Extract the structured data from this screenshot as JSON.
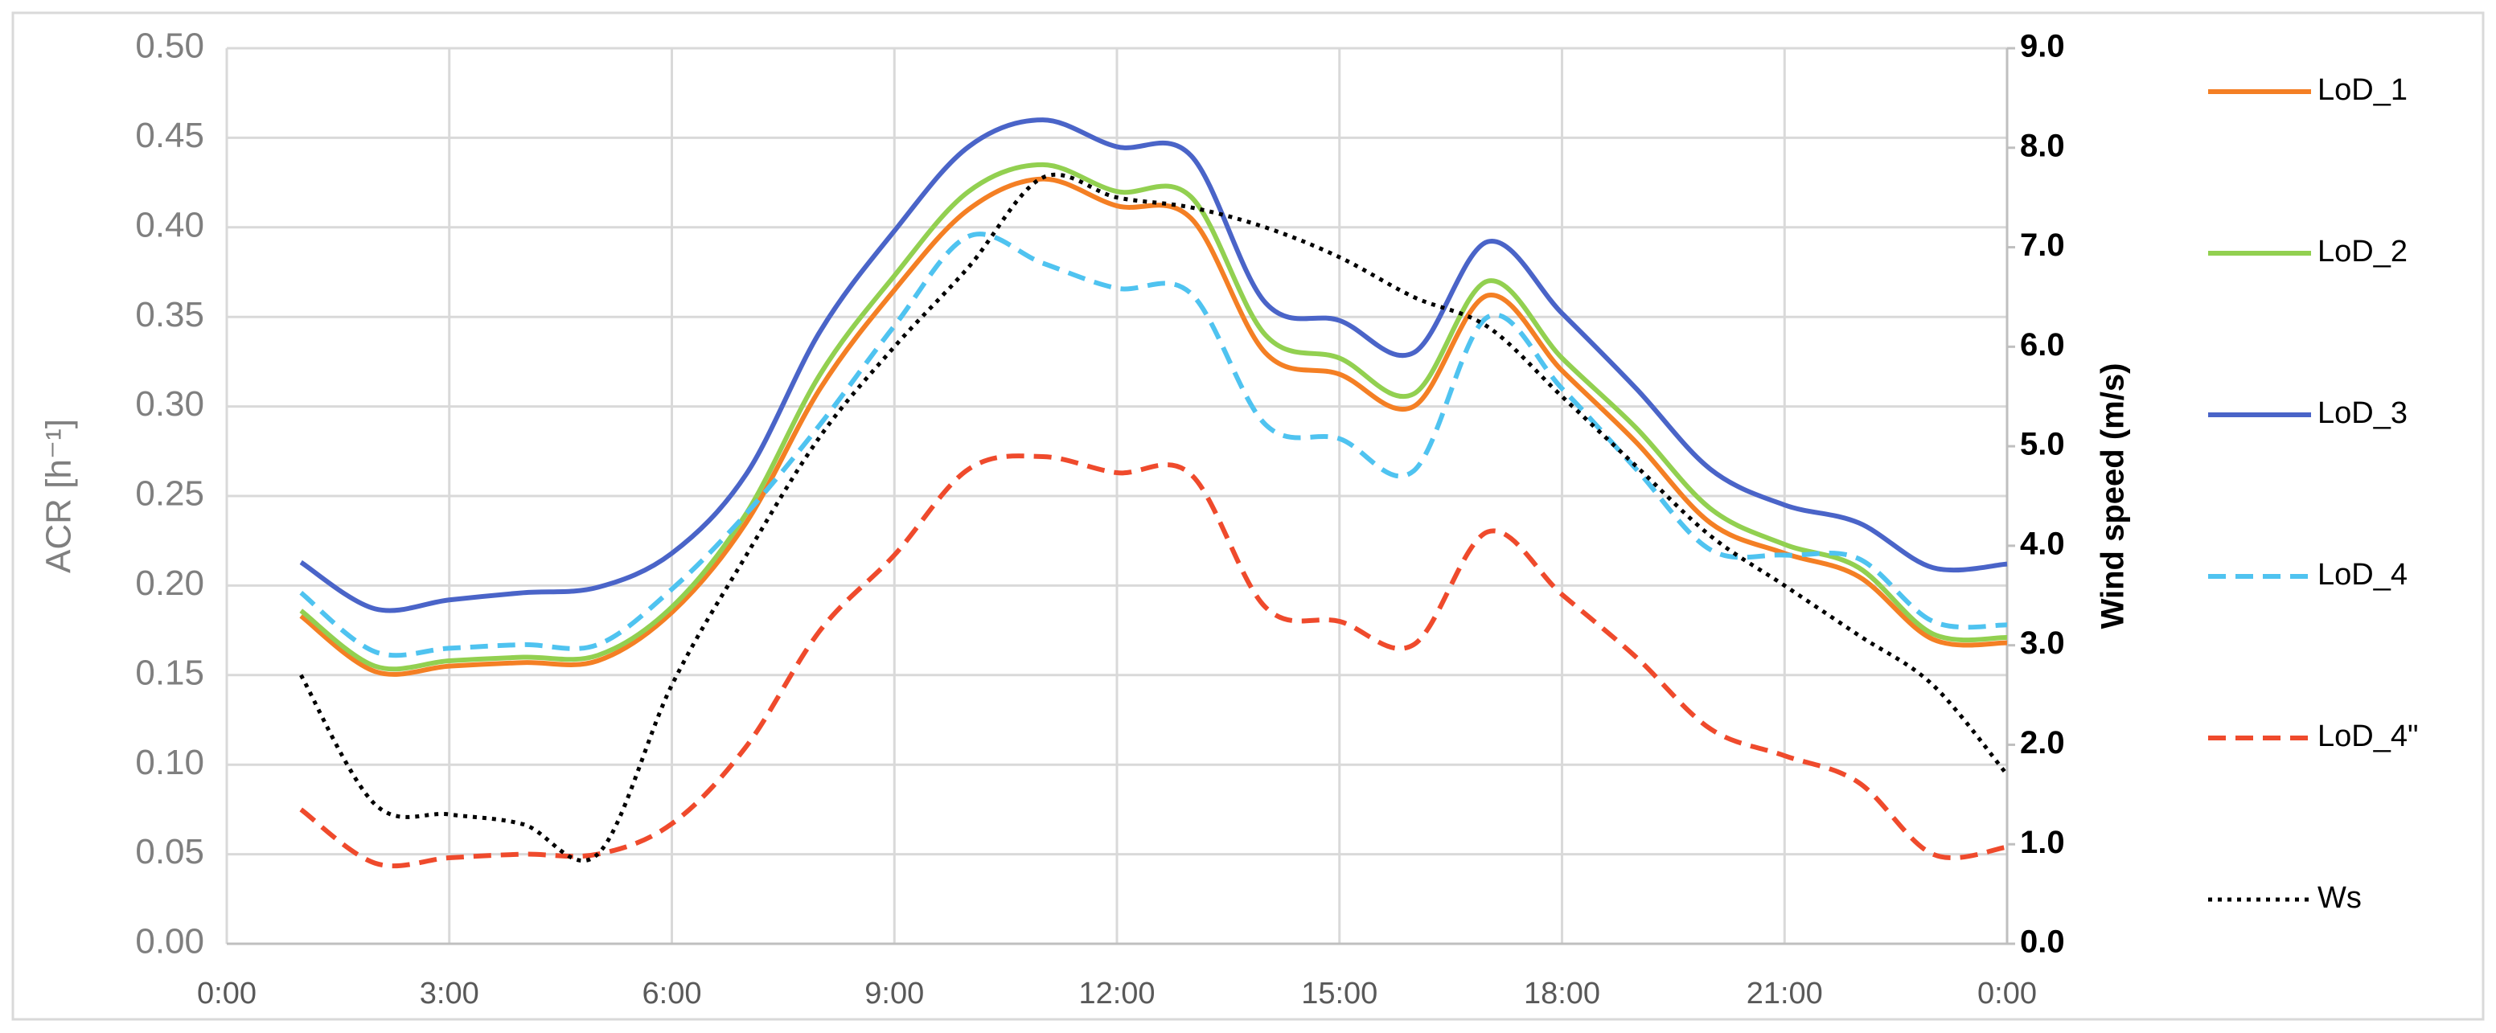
{
  "chart_data": {
    "type": "line",
    "y_label": "ACR [h⁻¹]",
    "y2_label": "Wind speed (m/s)",
    "x": [
      1,
      2,
      3,
      4,
      5,
      6,
      7,
      8,
      9,
      10,
      11,
      12,
      13,
      14,
      15,
      16,
      17,
      18,
      19,
      20,
      21,
      22,
      23,
      24
    ],
    "xlim": [
      0,
      24
    ],
    "xticks": [
      {
        "value": 0,
        "label": "0:00"
      },
      {
        "value": 3,
        "label": "3:00"
      },
      {
        "value": 6,
        "label": "6:00"
      },
      {
        "value": 9,
        "label": "9:00"
      },
      {
        "value": 12,
        "label": "12:00"
      },
      {
        "value": 15,
        "label": "15:00"
      },
      {
        "value": 18,
        "label": "18:00"
      },
      {
        "value": 21,
        "label": "21:00"
      },
      {
        "value": 24,
        "label": "0:00"
      }
    ],
    "ylim": [
      0,
      0.5
    ],
    "yticks": [
      {
        "value": 0,
        "label": "0.00"
      },
      {
        "value": 0.05,
        "label": "0.05"
      },
      {
        "value": 0.1,
        "label": "0.10"
      },
      {
        "value": 0.15,
        "label": "0.15"
      },
      {
        "value": 0.2,
        "label": "0.20"
      },
      {
        "value": 0.25,
        "label": "0.25"
      },
      {
        "value": 0.3,
        "label": "0.30"
      },
      {
        "value": 0.35,
        "label": "0.35"
      },
      {
        "value": 0.4,
        "label": "0.40"
      },
      {
        "value": 0.45,
        "label": "0.45"
      },
      {
        "value": 0.5,
        "label": "0.50"
      }
    ],
    "y2lim": [
      0,
      9
    ],
    "y2ticks": [
      {
        "value": 0,
        "label": "0.0"
      },
      {
        "value": 1,
        "label": "1.0"
      },
      {
        "value": 2,
        "label": "2.0"
      },
      {
        "value": 3,
        "label": "3.0"
      },
      {
        "value": 4,
        "label": "4.0"
      },
      {
        "value": 5,
        "label": "5.0"
      },
      {
        "value": 6,
        "label": "6.0"
      },
      {
        "value": 7,
        "label": "7.0"
      },
      {
        "value": 8,
        "label": "8.0"
      },
      {
        "value": 9,
        "label": "9.0"
      }
    ],
    "grid": true,
    "legend": "right",
    "series": [
      {
        "name": "LoD_1",
        "color": "#f47f24",
        "dash": "solid",
        "values": [
          0.183,
          0.152,
          0.155,
          0.157,
          0.158,
          0.185,
          0.235,
          0.31,
          0.365,
          0.41,
          0.427,
          0.412,
          0.405,
          0.33,
          0.318,
          0.3,
          0.362,
          0.32,
          0.28,
          0.235,
          0.218,
          0.205,
          0.17,
          0.168
        ]
      },
      {
        "name": "LoD_2",
        "color": "#92d050",
        "dash": "solid",
        "values": [
          0.186,
          0.155,
          0.158,
          0.16,
          0.161,
          0.188,
          0.24,
          0.318,
          0.373,
          0.42,
          0.435,
          0.42,
          0.417,
          0.34,
          0.327,
          0.307,
          0.37,
          0.327,
          0.288,
          0.243,
          0.223,
          0.21,
          0.173,
          0.171
        ]
      },
      {
        "name": "LoD_3",
        "color": "#4a64c8",
        "dash": "solid",
        "values": [
          0.213,
          0.187,
          0.192,
          0.196,
          0.199,
          0.218,
          0.262,
          0.342,
          0.398,
          0.445,
          0.46,
          0.445,
          0.44,
          0.358,
          0.348,
          0.33,
          0.392,
          0.352,
          0.31,
          0.265,
          0.245,
          0.235,
          0.21,
          0.212
        ]
      },
      {
        "name": "LoD_4",
        "color": "#4fc3f0",
        "dash": "dashed",
        "values": [
          0.196,
          0.163,
          0.165,
          0.167,
          0.167,
          0.198,
          0.24,
          0.29,
          0.345,
          0.395,
          0.38,
          0.366,
          0.363,
          0.29,
          0.282,
          0.264,
          0.35,
          0.31,
          0.265,
          0.22,
          0.217,
          0.215,
          0.18,
          0.178
        ]
      },
      {
        "name": "LoD_4\"",
        "color": "#ef4a2c",
        "dash": "dashed",
        "values": [
          0.075,
          0.045,
          0.048,
          0.05,
          0.05,
          0.067,
          0.11,
          0.175,
          0.217,
          0.265,
          0.272,
          0.263,
          0.262,
          0.188,
          0.18,
          0.167,
          0.23,
          0.195,
          0.16,
          0.12,
          0.105,
          0.09,
          0.05,
          0.054
        ]
      },
      {
        "name": "Ws",
        "color": "#000000",
        "dash": "dotted",
        "axis": "y2",
        "values": [
          2.7,
          1.4,
          1.3,
          1.2,
          0.9,
          2.6,
          3.9,
          5.1,
          6.0,
          6.8,
          7.7,
          7.5,
          7.4,
          7.2,
          6.9,
          6.5,
          6.2,
          5.5,
          4.8,
          4.1,
          3.6,
          3.1,
          2.6,
          1.7
        ]
      }
    ]
  }
}
